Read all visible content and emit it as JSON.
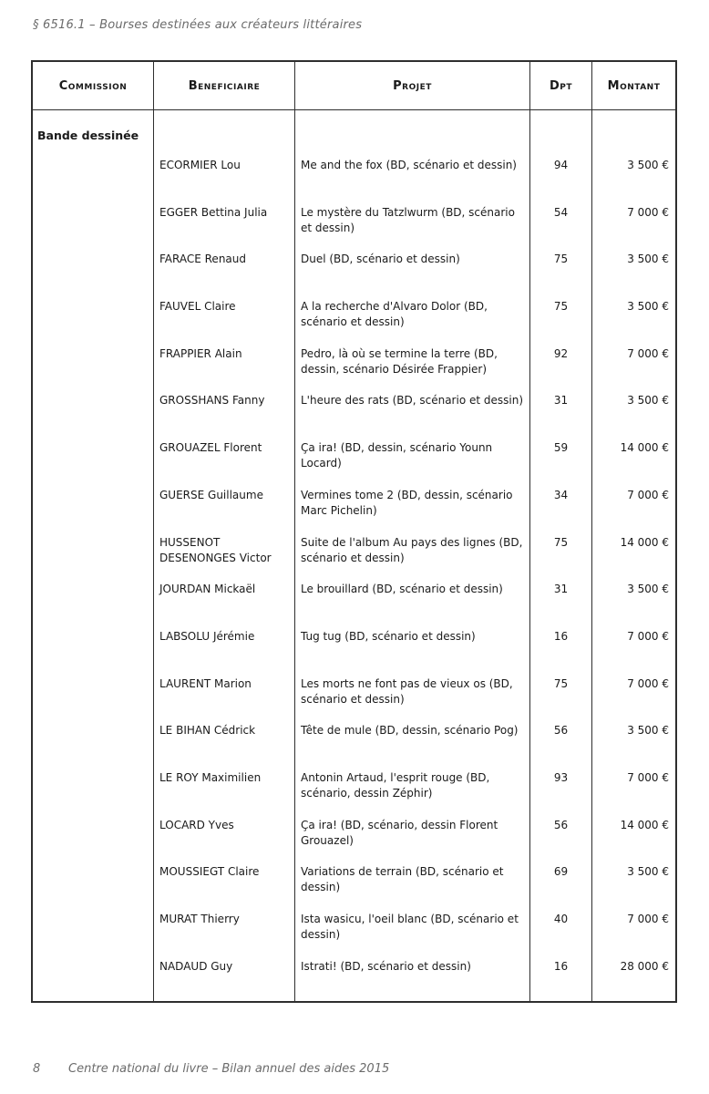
{
  "page": {
    "title": "§ 6516.1 – Bourses destinées aux créateurs littéraires",
    "footer_page_number": "8",
    "footer_text": "Centre national du livre – Bilan annuel des aides 2015"
  },
  "colors": {
    "border": "#2e2e2e",
    "text": "#1a1a1a",
    "muted_gray": "#6b6b6b",
    "background": "#ffffff"
  },
  "table": {
    "headers": {
      "commission": "Commission",
      "beneficiaire": "Beneficiaire",
      "projet": "Projet",
      "dpt": "Dpt",
      "montant": "Montant"
    },
    "commission_label": "Bande dessinée",
    "rows": [
      {
        "beneficiaire": "ECORMIER Lou",
        "projet": "Me and the fox (BD, scénario et dessin)",
        "dpt": "94",
        "montant": "3 500 €"
      },
      {
        "beneficiaire": "EGGER Bettina Julia",
        "projet": "Le mystère du Tatzlwurm (BD, scénario et dessin)",
        "dpt": "54",
        "montant": "7 000 €"
      },
      {
        "beneficiaire": "FARACE Renaud",
        "projet": "Duel (BD, scénario et dessin)",
        "dpt": "75",
        "montant": "3 500 €"
      },
      {
        "beneficiaire": "FAUVEL Claire",
        "projet": "A la recherche d'Alvaro Dolor (BD, scénario et dessin)",
        "dpt": "75",
        "montant": "3 500 €"
      },
      {
        "beneficiaire": "FRAPPIER Alain",
        "projet": "Pedro, là où se termine la terre (BD, dessin, scénario Désirée Frappier)",
        "dpt": "92",
        "montant": "7 000 €"
      },
      {
        "beneficiaire": "GROSSHANS Fanny",
        "projet": "L'heure des rats (BD, scénario et dessin)",
        "dpt": "31",
        "montant": "3 500 €"
      },
      {
        "beneficiaire": "GROUAZEL Florent",
        "projet": "Ça ira! (BD, dessin, scénario Younn Locard)",
        "dpt": "59",
        "montant": "14 000 €"
      },
      {
        "beneficiaire": "GUERSE Guillaume",
        "projet": "Vermines tome 2 (BD, dessin, scénario Marc Pichelin)",
        "dpt": "34",
        "montant": "7 000 €"
      },
      {
        "beneficiaire": "HUSSENOT DESENONGES Victor",
        "projet": "Suite de l'album Au pays des lignes (BD, scénario et dessin)",
        "dpt": "75",
        "montant": "14 000 €"
      },
      {
        "beneficiaire": "JOURDAN Mickaël",
        "projet": "Le brouillard (BD, scénario et dessin)",
        "dpt": "31",
        "montant": "3 500 €"
      },
      {
        "beneficiaire": "LABSOLU Jérémie",
        "projet": "Tug tug (BD, scénario et dessin)",
        "dpt": "16",
        "montant": "7 000 €"
      },
      {
        "beneficiaire": "LAURENT Marion",
        "projet": "Les morts ne font pas de vieux os (BD, scénario et dessin)",
        "dpt": "75",
        "montant": "7 000 €"
      },
      {
        "beneficiaire": "LE BIHAN Cédrick",
        "projet": "Tête de mule (BD, dessin, scénario Pog)",
        "dpt": "56",
        "montant": "3 500 €"
      },
      {
        "beneficiaire": "LE ROY Maximilien",
        "projet": "Antonin Artaud, l'esprit rouge (BD, scénario, dessin Zéphir)",
        "dpt": "93",
        "montant": "7 000 €"
      },
      {
        "beneficiaire": "LOCARD Yves",
        "projet": "Ça ira! (BD, scénario, dessin Florent Grouazel)",
        "dpt": "56",
        "montant": "14 000 €"
      },
      {
        "beneficiaire": "MOUSSIEGT Claire",
        "projet": "Variations de terrain (BD, scénario et dessin)",
        "dpt": "69",
        "montant": "3 500 €"
      },
      {
        "beneficiaire": "MURAT Thierry",
        "projet": "Ista wasicu, l'oeil blanc (BD, scénario et dessin)",
        "dpt": "40",
        "montant": "7 000 €"
      },
      {
        "beneficiaire": "NADAUD Guy",
        "projet": "Istrati! (BD, scénario et dessin)",
        "dpt": "16",
        "montant": "28 000 €"
      }
    ]
  }
}
